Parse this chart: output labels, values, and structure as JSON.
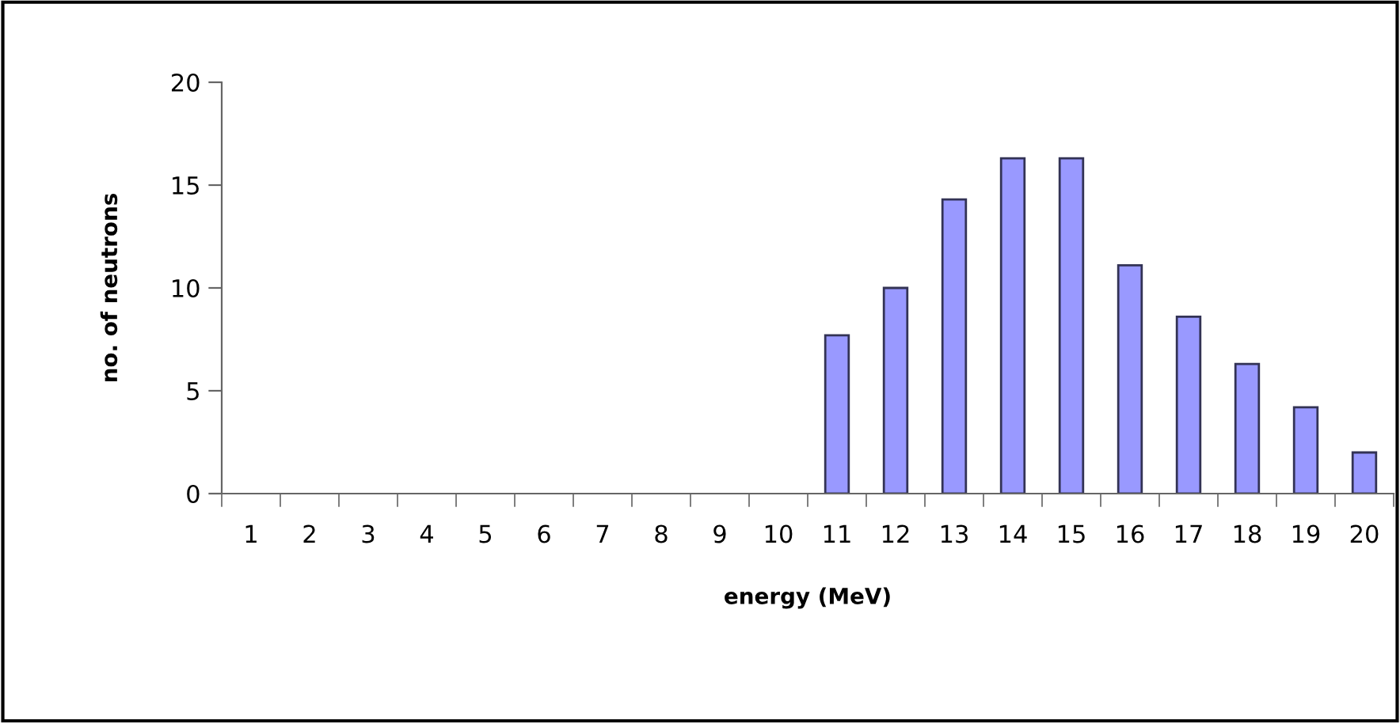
{
  "chart_data": {
    "type": "bar",
    "xlabel": "energy (MeV)",
    "ylabel": "no. of neutrons",
    "categories": [
      "1",
      "2",
      "3",
      "4",
      "5",
      "6",
      "7",
      "8",
      "9",
      "10",
      "11",
      "12",
      "13",
      "14",
      "15",
      "16",
      "17",
      "18",
      "19",
      "20"
    ],
    "values": [
      0,
      0,
      0,
      0,
      0,
      0,
      0,
      0,
      0,
      0,
      7.7,
      10.0,
      14.3,
      16.3,
      16.3,
      11.1,
      8.6,
      6.3,
      4.2,
      2.0
    ],
    "color": "#9999ff",
    "ylim": [
      0,
      20
    ],
    "yticks": [
      0,
      5,
      10,
      15,
      20
    ],
    "grid": false,
    "legend": false
  }
}
